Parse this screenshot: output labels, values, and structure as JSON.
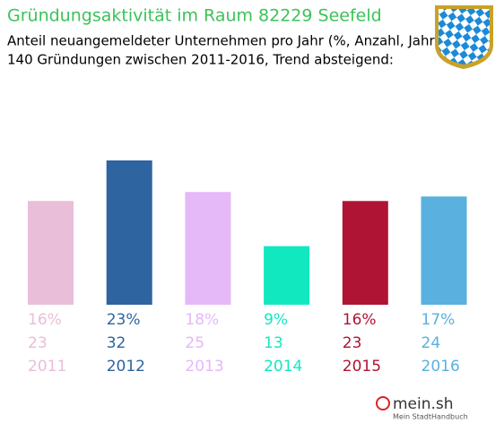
{
  "chart_data": {
    "type": "bar",
    "title": "Gründungsaktivität im Raum 82229 Seefeld",
    "subtitle": [
      "Anteil neuangemeldeter Unternehmen pro Jahr (%, Anzahl, Jahr)",
      "140 Gründungen zwischen 2011-2016, Trend absteigend:"
    ],
    "categories": [
      "2011",
      "2012",
      "2013",
      "2014",
      "2015",
      "2016"
    ],
    "values": [
      23,
      32,
      25,
      13,
      23,
      24
    ],
    "shares": [
      16,
      23,
      18,
      9,
      16,
      17
    ],
    "share_labels": [
      "16%",
      "23%",
      "18%",
      "9%",
      "16%",
      "17%"
    ],
    "colors": [
      "#e8bed8",
      "#2e64a0",
      "#e5b8f8",
      "#12e8c0",
      "#b01434",
      "#5ab0de"
    ]
  },
  "brand": {
    "name": "mein.sh",
    "tagline": "Mein StadtHandbuch"
  }
}
